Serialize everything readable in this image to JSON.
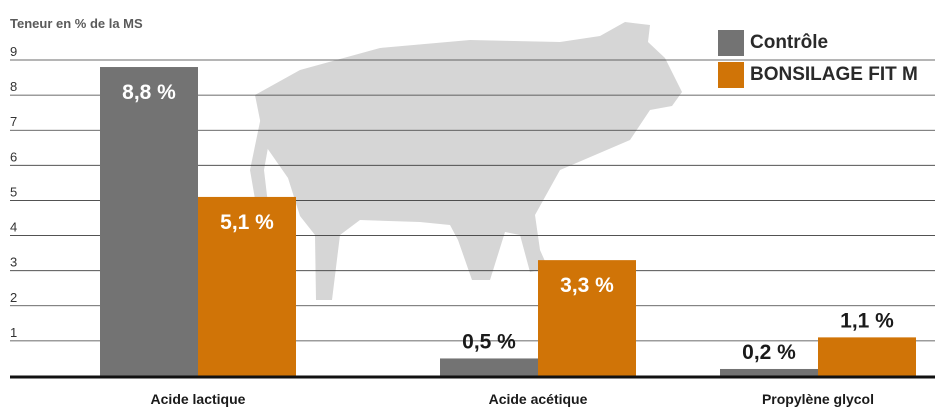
{
  "chart_data": {
    "type": "bar",
    "ylabel": "Teneur en % de la MS",
    "ylim": [
      0,
      9
    ],
    "yticks": [
      1,
      2,
      3,
      4,
      5,
      6,
      7,
      8,
      9
    ],
    "grid": true,
    "legend_position": "top-right",
    "categories": [
      "Acide lactique",
      "Acide acétique",
      "Propylène glycol"
    ],
    "series": [
      {
        "name": "Contrôle",
        "color": "#737373",
        "values": [
          8.8,
          0.5,
          0.2
        ],
        "labels": [
          "8,8 %",
          "0,5 %",
          "0,2 %"
        ]
      },
      {
        "name": "BONSILAGE FIT M",
        "color": "#d07407",
        "values": [
          5.1,
          3.3,
          1.1
        ],
        "labels": [
          "5,1 %",
          "3,3 %",
          "1,1 %"
        ]
      }
    ],
    "background_icon": "cow-silhouette"
  }
}
